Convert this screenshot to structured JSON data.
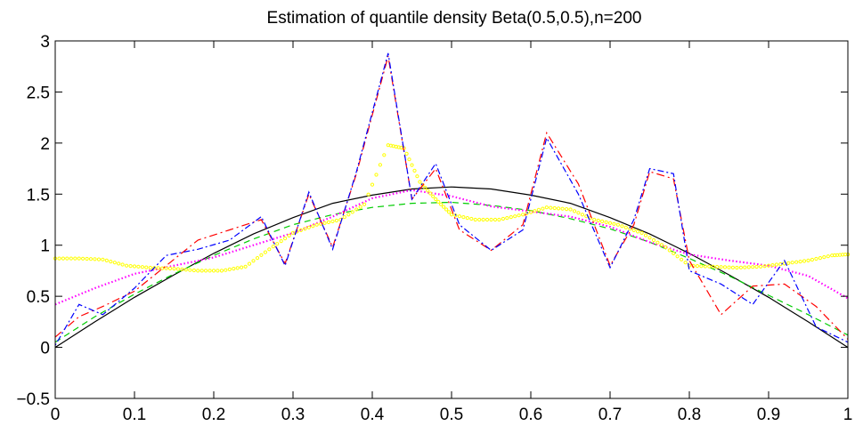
{
  "chart_data": {
    "type": "line",
    "title": "Estimation of quantile density Beta(0.5,0.5),n=200",
    "xlabel": "",
    "ylabel": "",
    "xlim": [
      0,
      1
    ],
    "ylim": [
      -0.5,
      3
    ],
    "xticks": [
      "0",
      "0.1",
      "0.2",
      "0.3",
      "0.4",
      "0.5",
      "0.6",
      "0.7",
      "0.8",
      "0.9",
      "1"
    ],
    "xtick_values": [
      0,
      0.1,
      0.2,
      0.3,
      0.4,
      0.5,
      0.6,
      0.7,
      0.8,
      0.9,
      1
    ],
    "yticks": [
      "−0.5",
      "0",
      "0.5",
      "1",
      "1.5",
      "2",
      "2.5",
      "3"
    ],
    "ytick_values": [
      -0.5,
      0,
      0.5,
      1,
      1.5,
      2,
      2.5,
      3
    ],
    "grid": false,
    "legend": null,
    "series": [
      {
        "color": "#000000",
        "style": "solid",
        "x": [
          0,
          0.05,
          0.1,
          0.15,
          0.2,
          0.25,
          0.3,
          0.35,
          0.4,
          0.45,
          0.5,
          0.55,
          0.6,
          0.65,
          0.7,
          0.75,
          0.8,
          0.85,
          0.9,
          0.95,
          1
        ],
        "y": [
          0,
          0.25,
          0.49,
          0.71,
          0.92,
          1.11,
          1.27,
          1.41,
          1.49,
          1.55,
          1.57,
          1.55,
          1.49,
          1.41,
          1.27,
          1.11,
          0.92,
          0.71,
          0.49,
          0.25,
          0
        ]
      },
      {
        "color": "#00cc00",
        "style": "dashed",
        "x": [
          0,
          0.05,
          0.1,
          0.15,
          0.2,
          0.25,
          0.3,
          0.35,
          0.4,
          0.45,
          0.5,
          0.55,
          0.6,
          0.65,
          0.7,
          0.75,
          0.8,
          0.85,
          0.9,
          0.95,
          1
        ],
        "y": [
          0.05,
          0.3,
          0.52,
          0.72,
          0.9,
          1.06,
          1.2,
          1.3,
          1.37,
          1.41,
          1.42,
          1.39,
          1.34,
          1.26,
          1.16,
          1.03,
          0.87,
          0.7,
          0.51,
          0.32,
          0.12
        ]
      },
      {
        "color": "#ff00ff",
        "style": "dotted",
        "x": [
          0,
          0.05,
          0.1,
          0.15,
          0.2,
          0.25,
          0.3,
          0.35,
          0.4,
          0.45,
          0.5,
          0.55,
          0.6,
          0.65,
          0.7,
          0.75,
          0.8,
          0.85,
          0.9,
          0.95,
          1
        ],
        "y": [
          0.42,
          0.58,
          0.72,
          0.8,
          0.88,
          1.0,
          1.12,
          1.28,
          1.46,
          1.54,
          1.48,
          1.38,
          1.33,
          1.28,
          1.18,
          1.03,
          0.91,
          0.85,
          0.8,
          0.7,
          0.48
        ]
      },
      {
        "color": "#ffff00",
        "style": "circles",
        "x": [
          0,
          0.03,
          0.06,
          0.09,
          0.12,
          0.15,
          0.18,
          0.21,
          0.24,
          0.27,
          0.3,
          0.33,
          0.36,
          0.39,
          0.42,
          0.44,
          0.46,
          0.48,
          0.5,
          0.53,
          0.56,
          0.59,
          0.62,
          0.65,
          0.68,
          0.71,
          0.74,
          0.77,
          0.8,
          0.83,
          0.86,
          0.89,
          0.92,
          0.95,
          0.98,
          1
        ],
        "y": [
          0.87,
          0.87,
          0.86,
          0.8,
          0.78,
          0.77,
          0.75,
          0.75,
          0.79,
          0.96,
          1.12,
          1.2,
          1.25,
          1.4,
          1.98,
          1.95,
          1.62,
          1.45,
          1.3,
          1.25,
          1.25,
          1.3,
          1.37,
          1.35,
          1.25,
          1.2,
          1.12,
          0.98,
          0.8,
          0.79,
          0.78,
          0.79,
          0.82,
          0.85,
          0.9,
          0.91
        ]
      },
      {
        "color": "#ff0000",
        "style": "dashdot",
        "x": [
          0,
          0.03,
          0.06,
          0.1,
          0.14,
          0.18,
          0.22,
          0.26,
          0.29,
          0.32,
          0.35,
          0.38,
          0.42,
          0.45,
          0.48,
          0.51,
          0.55,
          0.59,
          0.62,
          0.66,
          0.7,
          0.73,
          0.75,
          0.78,
          0.8,
          0.84,
          0.88,
          0.92,
          0.96,
          1
        ],
        "y": [
          0.1,
          0.3,
          0.4,
          0.55,
          0.8,
          1.05,
          1.15,
          1.25,
          0.82,
          1.5,
          0.98,
          1.7,
          2.85,
          1.45,
          1.75,
          1.15,
          0.95,
          1.2,
          2.1,
          1.6,
          0.8,
          1.2,
          1.72,
          1.65,
          0.85,
          0.32,
          0.6,
          0.62,
          0.4,
          0.08
        ]
      },
      {
        "color": "#0000ff",
        "style": "dashdotdot",
        "x": [
          0,
          0.03,
          0.06,
          0.1,
          0.14,
          0.18,
          0.22,
          0.26,
          0.29,
          0.32,
          0.35,
          0.38,
          0.42,
          0.45,
          0.48,
          0.51,
          0.55,
          0.59,
          0.62,
          0.66,
          0.7,
          0.73,
          0.75,
          0.78,
          0.8,
          0.84,
          0.88,
          0.92,
          0.96,
          1
        ],
        "y": [
          0.02,
          0.42,
          0.32,
          0.58,
          0.9,
          0.96,
          1.05,
          1.28,
          0.8,
          1.52,
          0.96,
          1.72,
          2.88,
          1.45,
          1.8,
          1.2,
          0.95,
          1.15,
          2.05,
          1.5,
          0.78,
          1.25,
          1.75,
          1.7,
          0.75,
          0.62,
          0.42,
          0.85,
          0.2,
          0.05
        ]
      }
    ]
  }
}
